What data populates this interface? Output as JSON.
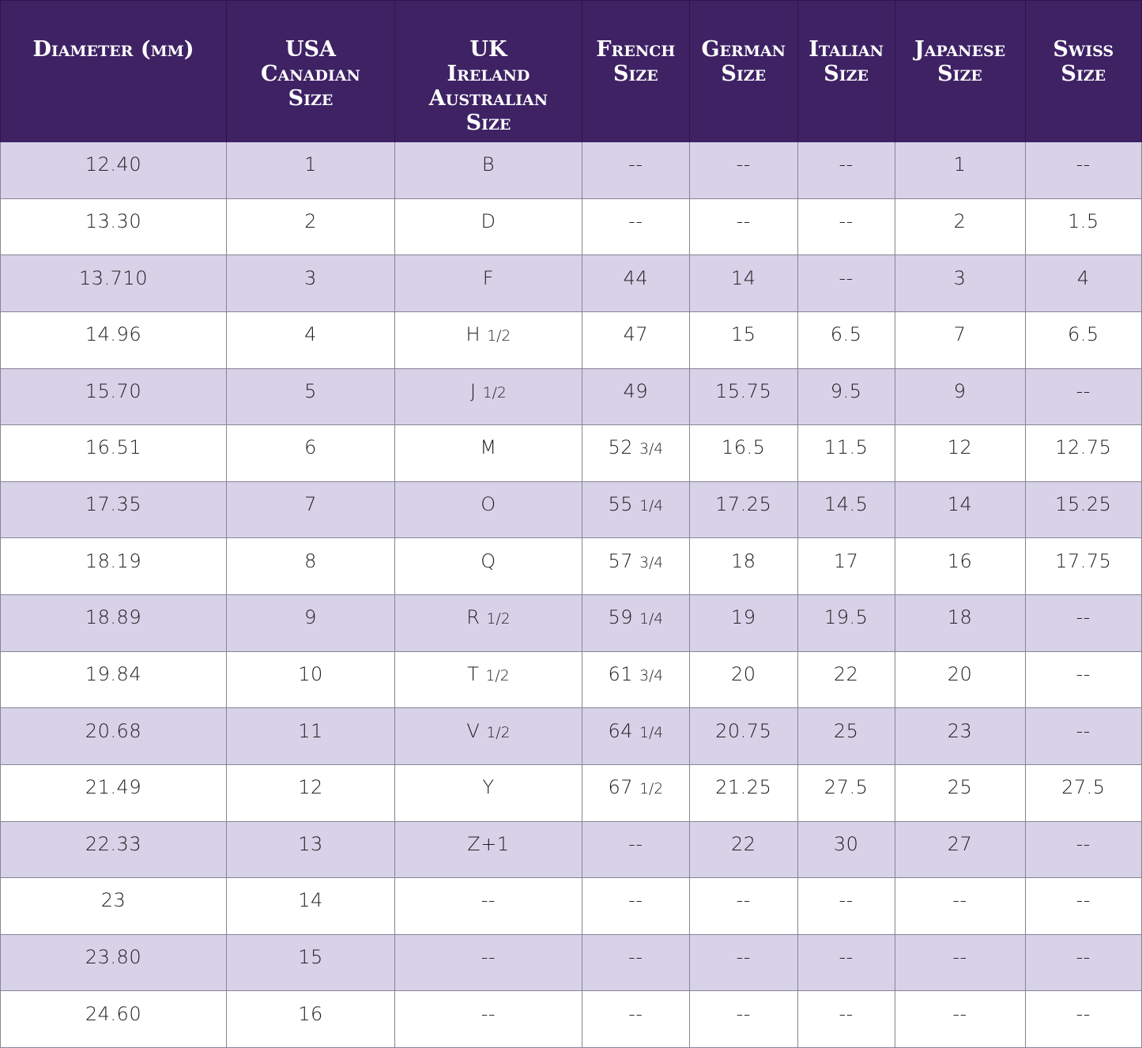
{
  "colors": {
    "header_bg": "#3e2264",
    "header_text": "#ffffff",
    "row_alt_bg": "#d8d2e8",
    "row_bg": "#ffffff",
    "body_text": "#1f1f23",
    "grid_line": "#878496"
  },
  "chart_data": {
    "type": "table",
    "columns": [
      {
        "key": "diameter-mm",
        "label": "Diameter (mm)",
        "lines": [
          "Diameter (mm)"
        ]
      },
      {
        "key": "usa-canadian-size",
        "label": "USA Canadian Size",
        "lines": [
          "USA",
          "Canadian",
          "Size"
        ]
      },
      {
        "key": "uk-ireland-australian-size",
        "label": "UK Ireland Australian Size",
        "lines": [
          "UK",
          "Ireland",
          "Australian",
          "Size"
        ]
      },
      {
        "key": "french-size",
        "label": "French Size",
        "lines": [
          "French",
          "Size"
        ]
      },
      {
        "key": "german-size",
        "label": "German Size",
        "lines": [
          "German",
          "Size"
        ]
      },
      {
        "key": "italian-size",
        "label": "Italian Size",
        "lines": [
          "Italian",
          "Size"
        ]
      },
      {
        "key": "japanese-size",
        "label": "Japanese Size",
        "lines": [
          "Japanese Size"
        ]
      },
      {
        "key": "swiss-size",
        "label": "Swiss Size",
        "lines": [
          "Swiss Size"
        ]
      }
    ],
    "rows": [
      [
        "12.40",
        "1",
        "B",
        "--",
        "--",
        "--",
        "1",
        "--"
      ],
      [
        "13.30",
        "2",
        "D",
        "--",
        "--",
        "--",
        "2",
        "1.5"
      ],
      [
        "13.710",
        "3",
        "F",
        "44",
        "14",
        "--",
        "3",
        "4"
      ],
      [
        "14.96",
        "4",
        "H 1/2",
        "47",
        "15",
        "6.5",
        "7",
        "6.5"
      ],
      [
        "15.70",
        "5",
        "J 1/2",
        "49",
        "15.75",
        "9.5",
        "9",
        "--"
      ],
      [
        "16.51",
        "6",
        "M",
        "52 3/4",
        "16.5",
        "11.5",
        "12",
        "12.75"
      ],
      [
        "17.35",
        "7",
        "O",
        "55 1/4",
        "17.25",
        "14.5",
        "14",
        "15.25"
      ],
      [
        "18.19",
        "8",
        "Q",
        "57 3/4",
        "18",
        "17",
        "16",
        "17.75"
      ],
      [
        "18.89",
        "9",
        "R 1/2",
        "59 1/4",
        "19",
        "19.5",
        "18",
        "--"
      ],
      [
        "19.84",
        "10",
        "T 1/2",
        "61 3/4",
        "20",
        "22",
        "20",
        "--"
      ],
      [
        "20.68",
        "11",
        "V 1/2",
        "64 1/4",
        "20.75",
        "25",
        "23",
        "--"
      ],
      [
        "21.49",
        "12",
        "Y",
        "67 1/2",
        "21.25",
        "27.5",
        "25",
        "27.5"
      ],
      [
        "22.33",
        "13",
        "Z+1",
        "--",
        "22",
        "30",
        "27",
        "--"
      ],
      [
        "23",
        "14",
        "--",
        "--",
        "--",
        "--",
        "--",
        "--"
      ],
      [
        "23.80",
        "15",
        "--",
        "--",
        "--",
        "--",
        "--",
        "--"
      ],
      [
        "24.60",
        "16",
        "--",
        "--",
        "--",
        "--",
        "--",
        "--"
      ]
    ]
  }
}
